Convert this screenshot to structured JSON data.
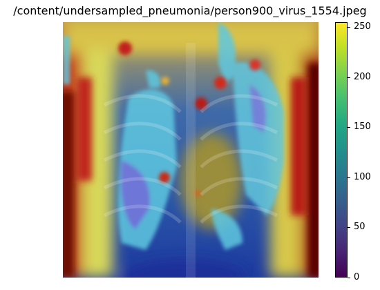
{
  "title": "/content/undersampled_pneumonia/person900_virus_1554.jpeg",
  "image": {
    "description_icon": "chest-xray-heatmap-overlay"
  },
  "colorbar": {
    "min": 0,
    "max": 255,
    "colormap": "viridis",
    "ticks": [
      {
        "value": 0,
        "label": "0"
      },
      {
        "value": 50,
        "label": "50"
      },
      {
        "value": 100,
        "label": "100"
      },
      {
        "value": 150,
        "label": "150"
      },
      {
        "value": 200,
        "label": "200"
      },
      {
        "value": 250,
        "label": "250"
      }
    ]
  }
}
